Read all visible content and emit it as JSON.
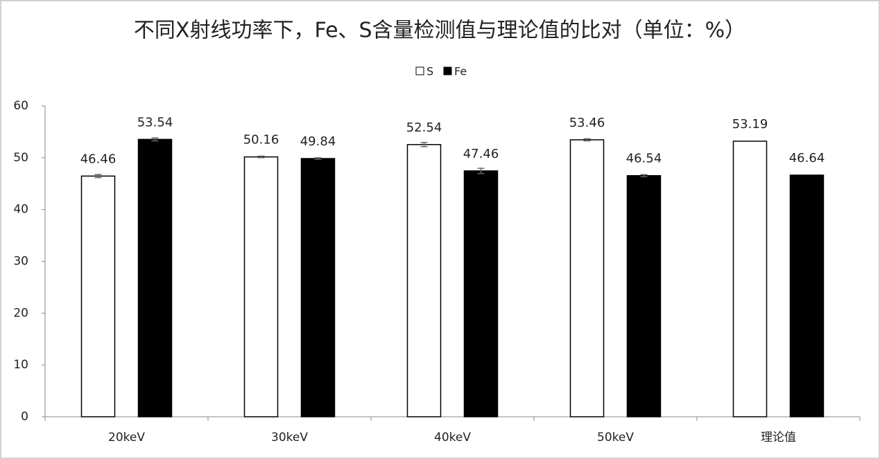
{
  "chart_data": {
    "type": "bar",
    "title": "不同X射线功率下，Fe、S含量检测值与理论值的比对（单位：%）",
    "categories": [
      "20keV",
      "30keV",
      "40keV",
      "50keV",
      "理论值"
    ],
    "series": [
      {
        "name": "S",
        "color": "#ffffff",
        "values": [
          46.46,
          50.16,
          52.54,
          53.46,
          53.19
        ],
        "errors": [
          0.3,
          0.15,
          0.4,
          0.2,
          null
        ]
      },
      {
        "name": "Fe",
        "color": "#000000",
        "values": [
          53.54,
          49.84,
          47.46,
          46.54,
          46.64
        ],
        "errors": [
          0.3,
          0.15,
          0.5,
          0.2,
          null
        ]
      }
    ],
    "ylim": [
      0,
      60
    ],
    "yticks": [
      0,
      10,
      20,
      30,
      40,
      50,
      60
    ],
    "grid": false,
    "legend": "top"
  }
}
